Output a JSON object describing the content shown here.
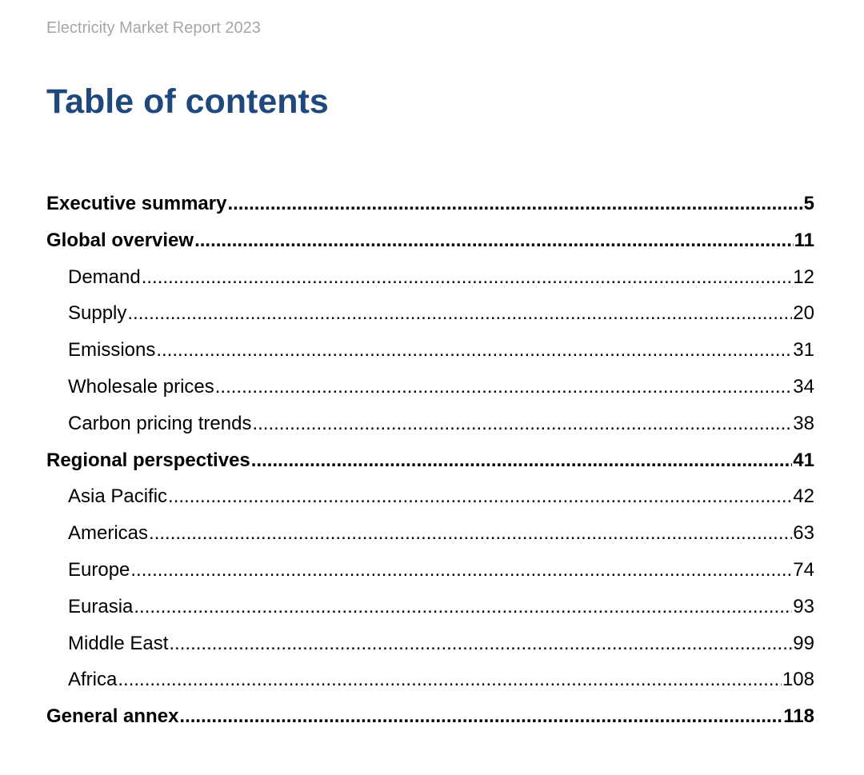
{
  "header": {
    "running_title": "Electricity Market Report 2023"
  },
  "title": "Table of contents",
  "colors": {
    "title": "#1f497d",
    "running_title": "#a6a6a6",
    "text": "#000000"
  },
  "toc": [
    {
      "label": "Executive summary",
      "page": "5",
      "level": 1
    },
    {
      "label": "Global overview",
      "page": "11",
      "level": 1
    },
    {
      "label": "Demand",
      "page": "12",
      "level": 2
    },
    {
      "label": "Supply",
      "page": "20",
      "level": 2
    },
    {
      "label": "Emissions",
      "page": "31",
      "level": 2
    },
    {
      "label": "Wholesale prices",
      "page": "34",
      "level": 2
    },
    {
      "label": "Carbon pricing trends",
      "page": "38",
      "level": 2
    },
    {
      "label": "Regional perspectives",
      "page": "41",
      "level": 1
    },
    {
      "label": "Asia Pacific",
      "page": "42",
      "level": 2
    },
    {
      "label": "Americas",
      "page": "63",
      "level": 2
    },
    {
      "label": "Europe",
      "page": "74",
      "level": 2
    },
    {
      "label": "Eurasia",
      "page": "93",
      "level": 2
    },
    {
      "label": "Middle East",
      "page": "99",
      "level": 2
    },
    {
      "label": "Africa",
      "page": "108",
      "level": 2
    },
    {
      "label": "General annex",
      "page": "118",
      "level": 1
    }
  ]
}
